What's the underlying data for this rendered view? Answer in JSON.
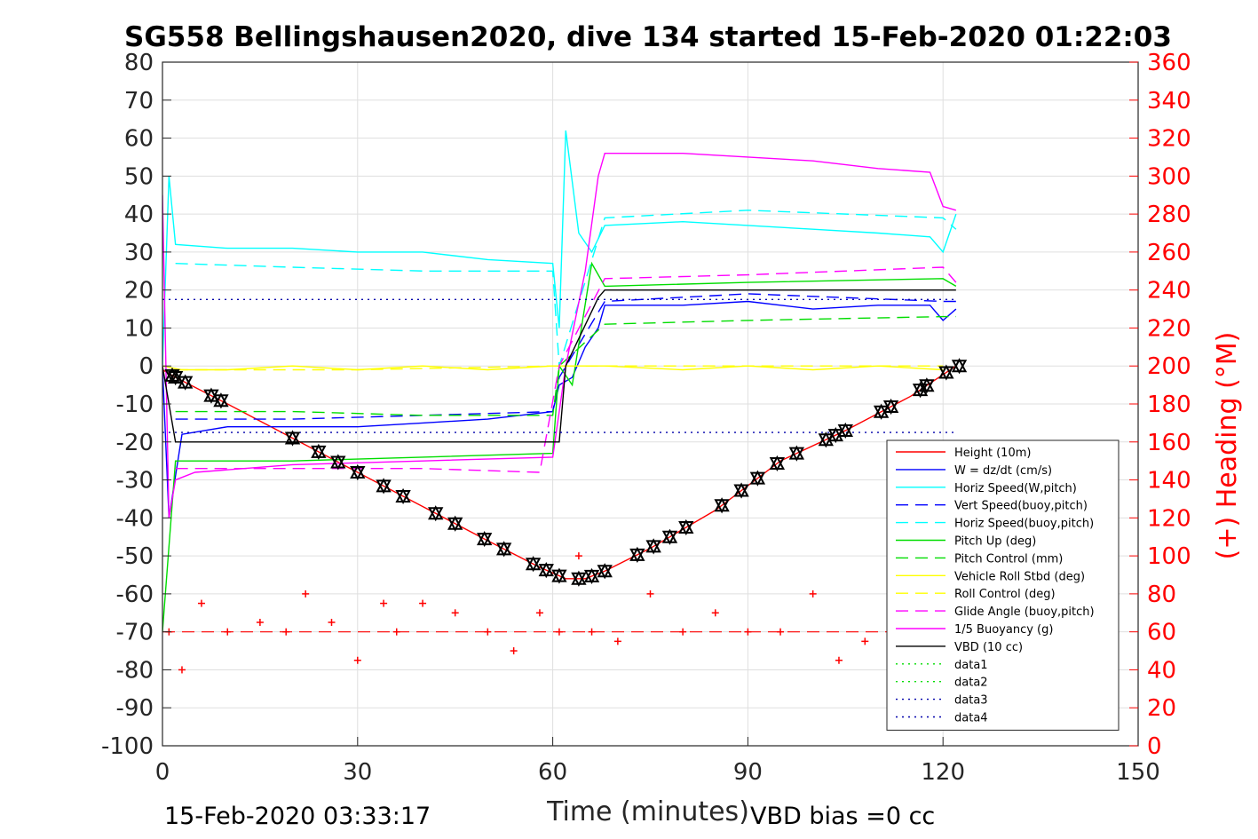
{
  "title": "SG558 Bellingshausen2020, dive 134 started 15-Feb-2020 01:22:03",
  "footer": {
    "end_time": "15-Feb-2020 03:33:17",
    "vbd_bias": "VBD bias =0 cc"
  },
  "chart_data": {
    "type": "line",
    "title": "SG558 Bellingshausen2020, dive 134 started 15-Feb-2020 01:22:03",
    "xlabel": "Time (minutes)",
    "ylabel": "",
    "ylabel_right": "(+) Heading (°M)",
    "xlim": [
      0,
      150
    ],
    "ylim": [
      -100,
      80
    ],
    "ylim_right": [
      0,
      360
    ],
    "x_ticks": [
      0,
      30,
      60,
      90,
      120,
      150
    ],
    "y_ticks": [
      80,
      70,
      60,
      50,
      40,
      30,
      20,
      10,
      0,
      -10,
      -20,
      -30,
      -40,
      -50,
      -60,
      -70,
      -80,
      -90,
      -100
    ],
    "y_ticks_right": [
      360,
      340,
      320,
      300,
      280,
      260,
      240,
      220,
      200,
      180,
      160,
      140,
      120,
      100,
      80,
      60,
      40,
      20,
      0
    ],
    "grid": true,
    "legend_position": "lower-right",
    "colors": {
      "height": "#ff0000",
      "w": "#0000ff",
      "horiz_speed": "#00ffff",
      "vert_speed_buoy": "#0000ff",
      "horiz_speed_buoy": "#00ffff",
      "pitch_up": "#00dd00",
      "pitch_control": "#00dd00",
      "roll": "#ffff00",
      "roll_control": "#ffff00",
      "glide_angle": "#ff00ff",
      "buoyancy": "#ff00ff",
      "vbd": "#000000",
      "heading": "#ff0000"
    },
    "legend": [
      {
        "label": "Height (10m)",
        "color": "#ff0000",
        "style": "solid"
      },
      {
        "label": "W = dz/dt (cm/s)",
        "color": "#0000ff",
        "style": "solid"
      },
      {
        "label": "Horiz Speed(W,pitch)",
        "color": "#00ffff",
        "style": "solid"
      },
      {
        "label": "Vert Speed(buoy,pitch)",
        "color": "#0000ff",
        "style": "dashed"
      },
      {
        "label": "Horiz Speed(buoy,pitch)",
        "color": "#00ffff",
        "style": "dashed"
      },
      {
        "label": "Pitch Up (deg)",
        "color": "#00dd00",
        "style": "solid"
      },
      {
        "label": "Pitch Control (mm)",
        "color": "#00dd00",
        "style": "dashed"
      },
      {
        "label": "Vehicle Roll Stbd (deg)",
        "color": "#ffff00",
        "style": "solid"
      },
      {
        "label": "Roll Control (deg)",
        "color": "#ffff00",
        "style": "dashed"
      },
      {
        "label": "Glide Angle (buoy,pitch)",
        "color": "#ff00ff",
        "style": "dashed"
      },
      {
        "label": "1/5 Buoyancy (g)",
        "color": "#ff00ff",
        "style": "solid"
      },
      {
        "label": "VBD (10 cc)",
        "color": "#000000",
        "style": "solid"
      },
      {
        "label": "data1",
        "color": "#00dd00",
        "style": "dotted"
      },
      {
        "label": "data2",
        "color": "#00dd00",
        "style": "dotted"
      },
      {
        "label": "data3",
        "color": "#0000aa",
        "style": "dotted"
      },
      {
        "label": "data4",
        "color": "#0000aa",
        "style": "dotted"
      }
    ],
    "series": [
      {
        "name": "Height (10m)",
        "x": [
          0,
          2,
          10,
          20,
          30,
          40,
          50,
          58,
          62,
          65,
          68,
          75,
          85,
          95,
          105,
          115,
          122
        ],
        "y": [
          -1,
          -3,
          -10,
          -19,
          -28,
          -37,
          -46,
          -53,
          -56,
          -56,
          -54,
          -48,
          -38,
          -25,
          -17,
          -8,
          0
        ]
      },
      {
        "name": "W = dz/dt (cm/s)",
        "x": [
          0,
          1,
          3,
          10,
          20,
          30,
          40,
          50,
          60,
          61,
          63,
          65,
          67,
          68,
          80,
          90,
          100,
          110,
          118,
          120,
          122
        ],
        "y": [
          0,
          -40,
          -18,
          -16,
          -16,
          -16,
          -15,
          -14,
          -12,
          -5,
          -3,
          5,
          10,
          16,
          16,
          17,
          15,
          16,
          16,
          12,
          15
        ]
      },
      {
        "name": "Horiz Speed(W,pitch)",
        "x": [
          0,
          1,
          2,
          10,
          20,
          30,
          40,
          50,
          60,
          61,
          62,
          64,
          66,
          68,
          80,
          90,
          100,
          110,
          118,
          120,
          122
        ],
        "y": [
          0,
          50,
          32,
          31,
          31,
          30,
          30,
          28,
          27,
          10,
          62,
          35,
          30,
          37,
          38,
          37,
          36,
          35,
          34,
          30,
          40
        ]
      },
      {
        "name": "Vert Speed(buoy,pitch)",
        "x": [
          2,
          20,
          40,
          60,
          61,
          68,
          90,
          120,
          122
        ],
        "y": [
          -14,
          -14,
          -13,
          -12,
          -3,
          17,
          19,
          17,
          17
        ]
      },
      {
        "name": "Horiz Speed(buoy,pitch)",
        "x": [
          2,
          20,
          40,
          60,
          61,
          68,
          90,
          120,
          122
        ],
        "y": [
          27,
          26,
          25,
          25,
          0,
          39,
          41,
          39,
          36
        ]
      },
      {
        "name": "Pitch Up (deg)",
        "x": [
          0,
          2,
          20,
          40,
          60,
          61,
          63,
          66,
          68,
          90,
          120,
          122
        ],
        "y": [
          -70,
          -25,
          -25,
          -24,
          -23,
          0,
          -5,
          27,
          21,
          22,
          23,
          21
        ]
      },
      {
        "name": "Pitch Control (mm)",
        "x": [
          2,
          20,
          40,
          60,
          61,
          68,
          90,
          120,
          122
        ],
        "y": [
          -12,
          -12,
          -13,
          -13,
          0,
          11,
          12,
          13,
          13
        ]
      },
      {
        "name": "Vehicle Roll Stbd (deg)",
        "x": [
          0,
          3,
          10,
          20,
          30,
          40,
          50,
          60,
          68,
          80,
          90,
          100,
          110,
          120
        ],
        "y": [
          0,
          -1,
          -1,
          0,
          -1,
          0,
          -1,
          0,
          0,
          -1,
          0,
          -1,
          0,
          -1
        ]
      },
      {
        "name": "Roll Control (deg)",
        "x": [
          2,
          30,
          60,
          68,
          90,
          120
        ],
        "y": [
          -1,
          -1,
          0,
          0,
          0,
          0
        ]
      },
      {
        "name": "Glide Angle (buoy,pitch)",
        "x": [
          2,
          20,
          40,
          58,
          61,
          68,
          90,
          120,
          122
        ],
        "y": [
          -27,
          -27,
          -27,
          -28,
          0,
          23,
          24,
          26,
          22
        ]
      },
      {
        "name": "1/5 Buoyancy (g)",
        "x": [
          0,
          1,
          2,
          5,
          20,
          40,
          60,
          62,
          65,
          67,
          68,
          80,
          90,
          100,
          110,
          118,
          120,
          122
        ],
        "y": [
          45,
          -40,
          -30,
          -28,
          -26,
          -25,
          -24,
          0,
          25,
          50,
          56,
          56,
          55,
          54,
          52,
          51,
          42,
          41
        ]
      },
      {
        "name": "VBD (10 cc)",
        "x": [
          0,
          2,
          30,
          61,
          62,
          67,
          68,
          90,
          120,
          122
        ],
        "y": [
          0,
          -20,
          -20,
          -20,
          0,
          18,
          20,
          20,
          20,
          20
        ]
      },
      {
        "name": "data3",
        "x": [
          0,
          122
        ],
        "y": [
          17.5,
          17.5
        ]
      },
      {
        "name": "data4",
        "x": [
          0,
          122
        ],
        "y": [
          -17.5,
          -17.5
        ]
      },
      {
        "name": "Heading",
        "axis": "right",
        "x": [
          1,
          3,
          6,
          10,
          15,
          19,
          22,
          26,
          30,
          34,
          36,
          40,
          45,
          50,
          54,
          58,
          61,
          64,
          66,
          70,
          75,
          80,
          85,
          90,
          95,
          100,
          104,
          108,
          112
        ],
        "y": [
          60,
          40,
          75,
          60,
          65,
          60,
          80,
          65,
          45,
          75,
          60,
          75,
          70,
          60,
          50,
          70,
          60,
          100,
          60,
          55,
          80,
          60,
          70,
          60,
          60,
          80,
          45,
          55,
          70
        ]
      }
    ],
    "heading_mean_deg": 60,
    "markers_x": [
      1.5,
      2,
      3.5,
      7.5,
      9,
      20,
      24,
      27,
      30,
      34,
      37,
      42,
      45,
      49.5,
      52.5,
      57,
      59,
      61,
      64,
      66,
      68,
      73,
      75.5,
      78,
      80.5,
      86,
      89,
      91.5,
      94.5,
      97.5,
      102,
      103.5,
      105,
      110.5,
      112,
      116.5,
      117.5,
      120.5,
      122.5
    ]
  }
}
